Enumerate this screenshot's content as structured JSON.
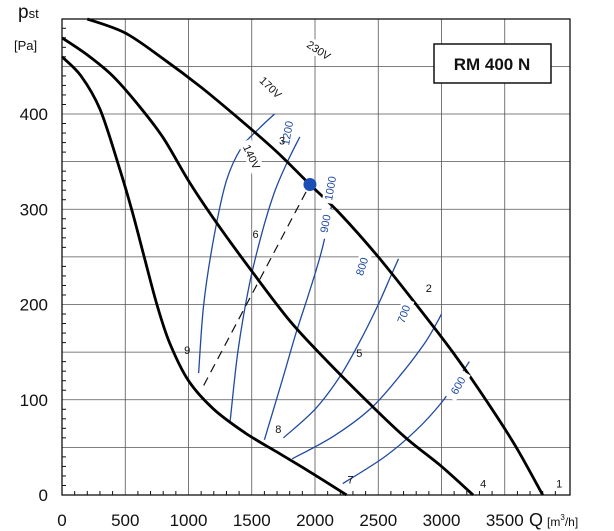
{
  "chart_data": {
    "type": "line",
    "title": "RM 400 N",
    "ylabel_main": "p",
    "ylabel_sub": "st",
    "yunit": "[Pa]",
    "xlabel": "Q",
    "xunit_prefix": "[m",
    "xunit_exp": "3",
    "xunit_suffix": "/h]",
    "xlim": [
      0,
      4000
    ],
    "ylim": [
      0,
      500
    ],
    "x_ticks": [
      0,
      500,
      1000,
      1500,
      2000,
      2500,
      3000,
      3500
    ],
    "x_tick_labels": [
      "0",
      "500",
      "1000",
      "1500",
      "2000",
      "2500",
      "3000",
      "3500"
    ],
    "y_ticks": [
      0,
      100,
      200,
      300,
      400
    ],
    "y_tick_labels": [
      "0",
      "100",
      "200",
      "300",
      "400"
    ],
    "grid": true,
    "fan_curves": [
      {
        "name": "230V",
        "label_at": [
          2030,
          467
        ],
        "label_angle": 33,
        "x": [
          200,
          500,
          800,
          1100,
          1400,
          1700,
          1960,
          2200,
          2500,
          2800,
          3100,
          3400,
          3600,
          3800
        ],
        "y": [
          500,
          485,
          458,
          428,
          395,
          360,
          326,
          295,
          250,
          200,
          148,
          90,
          48,
          0
        ]
      },
      {
        "name": "170V",
        "label_at": [
          1650,
          428
        ],
        "label_angle": 44,
        "x": [
          -20,
          200,
          400,
          600,
          800,
          1000,
          1200,
          1500,
          1800,
          2100,
          2400,
          2700,
          3000,
          3250
        ],
        "y": [
          480,
          462,
          440,
          410,
          375,
          330,
          290,
          235,
          183,
          140,
          100,
          62,
          30,
          0
        ]
      },
      {
        "name": "140V",
        "label_at": [
          1500,
          355
        ],
        "label_angle": 65,
        "x": [
          -20,
          150,
          300,
          450,
          550,
          650,
          750,
          850,
          1000,
          1200,
          1450,
          1700,
          1950,
          2250
        ],
        "y": [
          460,
          440,
          405,
          345,
          300,
          250,
          200,
          160,
          120,
          90,
          65,
          45,
          25,
          0
        ]
      }
    ],
    "speed_curves": [
      {
        "label": "1200",
        "label_at": [
          1780,
          380
        ],
        "label_angle": -80,
        "x": [
          1080,
          1120,
          1200,
          1300,
          1420,
          1560,
          1680
        ],
        "y": [
          128,
          200,
          270,
          330,
          365,
          385,
          400
        ]
      },
      {
        "label": "1000",
        "label_at": [
          2120,
          322
        ],
        "label_angle": -80,
        "x": [
          1330,
          1390,
          1480,
          1580,
          1680,
          1790,
          1880
        ],
        "y": [
          78,
          150,
          220,
          275,
          318,
          352,
          376
        ]
      },
      {
        "label": "900",
        "label_at": [
          2080,
          285
        ],
        "label_angle": -80,
        "x": [
          1600,
          1740,
          1850,
          1960,
          2050,
          2110,
          2140
        ],
        "y": [
          58,
          120,
          170,
          215,
          255,
          290,
          310
        ]
      },
      {
        "label": "800",
        "label_at": [
          2370,
          240
        ],
        "label_angle": -72,
        "x": [
          1750,
          2000,
          2200,
          2370,
          2500,
          2600,
          2660
        ],
        "y": [
          60,
          90,
          125,
          165,
          200,
          230,
          248
        ]
      },
      {
        "label": "700",
        "label_at": [
          2700,
          190
        ],
        "label_angle": -70,
        "x": [
          1820,
          2150,
          2450,
          2700,
          2870,
          2960,
          3000
        ],
        "y": [
          38,
          62,
          92,
          130,
          160,
          180,
          190
        ]
      },
      {
        "label": "600",
        "label_at": [
          3130,
          115
        ],
        "label_angle": -60,
        "x": [
          2220,
          2550,
          2800,
          3000,
          3130,
          3220
        ],
        "y": [
          12,
          40,
          68,
          97,
          122,
          140
        ]
      }
    ],
    "system_line": {
      "x": [
        1120,
        1960
      ],
      "y": [
        115,
        326
      ]
    },
    "operating_point": {
      "x": 1960,
      "y": 326
    },
    "point_labels": [
      {
        "text": "1",
        "x": 3930,
        "y": 8
      },
      {
        "text": "2",
        "x": 2900,
        "y": 213
      },
      {
        "text": "3",
        "x": 1740,
        "y": 368
      },
      {
        "text": "4",
        "x": 3330,
        "y": 8
      },
      {
        "text": "5",
        "x": 2350,
        "y": 145
      },
      {
        "text": "6",
        "x": 1530,
        "y": 270
      },
      {
        "text": "7",
        "x": 2280,
        "y": 12
      },
      {
        "text": "8",
        "x": 1710,
        "y": 65
      },
      {
        "text": "9",
        "x": 990,
        "y": 148
      }
    ]
  },
  "colors": {
    "fan_curve": "#000000",
    "speed_curve": "#1f4aa0",
    "operating_point": "#1a4fb5",
    "grid": "#555555",
    "text": "#111111"
  }
}
